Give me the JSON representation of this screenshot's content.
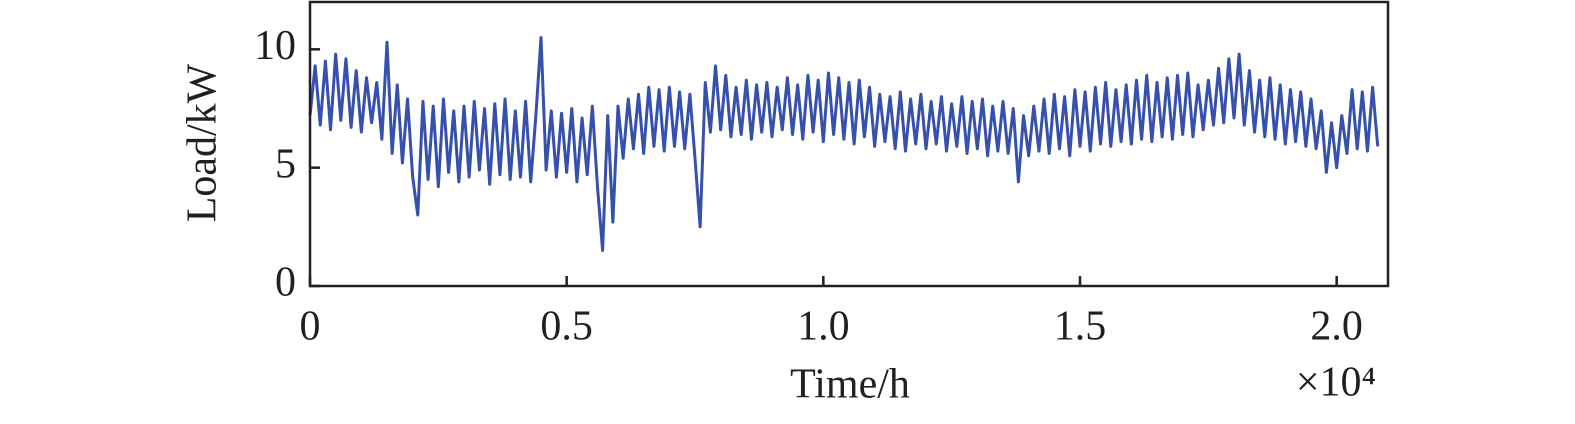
{
  "chart_data": {
    "type": "line",
    "xlabel": "Time/h",
    "ylabel": "Load/kW",
    "x_multiplier": "×10⁴",
    "color": "#3650ad",
    "xlim": [
      0,
      2.1
    ],
    "ylim": [
      0,
      12
    ],
    "xticks": [
      0,
      0.5,
      {
        "value": 1,
        "label": "1.0"
      },
      1.5,
      {
        "value": 2,
        "label": "2.0"
      }
    ],
    "yticks": [
      0,
      5,
      10
    ],
    "x": [
      0,
      0.01,
      0.02,
      0.03,
      0.04,
      0.05,
      0.06,
      0.07,
      0.08,
      0.09,
      0.1,
      0.11,
      0.12,
      0.13,
      0.14,
      0.15,
      0.16,
      0.17,
      0.18,
      0.19,
      0.2,
      0.21,
      0.22,
      0.23,
      0.24,
      0.25,
      0.26,
      0.27,
      0.28,
      0.29,
      0.3,
      0.31,
      0.32,
      0.33,
      0.34,
      0.35,
      0.36,
      0.37,
      0.38,
      0.39,
      0.4,
      0.41,
      0.42,
      0.43,
      0.44,
      0.45,
      0.46,
      0.47,
      0.48,
      0.49,
      0.5,
      0.51,
      0.52,
      0.53,
      0.54,
      0.55,
      0.56,
      0.57,
      0.58,
      0.59,
      0.6,
      0.61,
      0.62,
      0.63,
      0.64,
      0.65,
      0.66,
      0.67,
      0.68,
      0.69,
      0.7,
      0.71,
      0.72,
      0.73,
      0.74,
      0.75,
      0.76,
      0.77,
      0.78,
      0.79,
      0.8,
      0.81,
      0.82,
      0.83,
      0.84,
      0.85,
      0.86,
      0.87,
      0.88,
      0.89,
      0.9,
      0.91,
      0.92,
      0.93,
      0.94,
      0.95,
      0.96,
      0.97,
      0.98,
      0.99,
      1,
      1.01,
      1.02,
      1.03,
      1.04,
      1.05,
      1.06,
      1.07,
      1.08,
      1.09,
      1.1,
      1.11,
      1.12,
      1.13,
      1.14,
      1.15,
      1.16,
      1.17,
      1.18,
      1.19,
      1.2,
      1.21,
      1.22,
      1.23,
      1.24,
      1.25,
      1.26,
      1.27,
      1.28,
      1.29,
      1.3,
      1.31,
      1.32,
      1.33,
      1.34,
      1.35,
      1.36,
      1.37,
      1.38,
      1.39,
      1.4,
      1.41,
      1.42,
      1.43,
      1.44,
      1.45,
      1.46,
      1.47,
      1.48,
      1.49,
      1.5,
      1.51,
      1.52,
      1.53,
      1.54,
      1.55,
      1.56,
      1.57,
      1.58,
      1.59,
      1.6,
      1.61,
      1.62,
      1.63,
      1.64,
      1.65,
      1.66,
      1.67,
      1.68,
      1.69,
      1.7,
      1.71,
      1.72,
      1.73,
      1.74,
      1.75,
      1.76,
      1.77,
      1.78,
      1.79,
      1.8,
      1.81,
      1.82,
      1.83,
      1.84,
      1.85,
      1.86,
      1.87,
      1.88,
      1.89,
      1.9,
      1.91,
      1.92,
      1.93,
      1.94,
      1.95,
      1.96,
      1.97,
      1.98,
      1.99,
      2,
      2.01,
      2.02,
      2.03,
      2.04,
      2.05,
      2.06,
      2.07,
      2.08
    ],
    "values": [
      7.2,
      9.3,
      6.8,
      9.5,
      6.6,
      9.8,
      7.0,
      9.6,
      6.7,
      9.1,
      6.5,
      8.8,
      6.9,
      8.6,
      6.2,
      10.3,
      5.6,
      8.5,
      5.2,
      7.9,
      4.6,
      3.0,
      7.8,
      4.5,
      7.6,
      4.2,
      7.9,
      4.8,
      7.4,
      4.4,
      7.6,
      4.6,
      7.8,
      4.9,
      7.5,
      4.3,
      7.7,
      4.7,
      7.9,
      4.5,
      7.4,
      4.6,
      7.8,
      4.4,
      7.2,
      10.5,
      4.9,
      7.4,
      4.6,
      7.3,
      4.8,
      7.5,
      4.4,
      7.1,
      4.7,
      7.6,
      4.2,
      1.5,
      7.2,
      2.7,
      7.6,
      5.4,
      7.9,
      5.8,
      8.1,
      5.6,
      8.4,
      5.9,
      8.3,
      5.7,
      8.4,
      5.9,
      8.2,
      5.8,
      8.1,
      5.4,
      2.5,
      8.6,
      6.5,
      9.3,
      6.6,
      8.9,
      6.3,
      8.4,
      6.4,
      8.7,
      6.2,
      8.5,
      6.5,
      8.6,
      6.3,
      8.4,
      6.6,
      8.8,
      6.4,
      8.5,
      6.2,
      8.9,
      6.5,
      8.7,
      6.1,
      9.0,
      6.4,
      8.8,
      6.2,
      8.6,
      6.0,
      8.7,
      6.3,
      8.4,
      5.9,
      8.1,
      6.1,
      8.0,
      5.8,
      8.2,
      5.7,
      7.9,
      6.0,
      8.1,
      5.8,
      7.8,
      6.0,
      8.0,
      5.7,
      7.7,
      5.9,
      8.0,
      5.6,
      7.8,
      5.8,
      7.9,
      5.5,
      7.6,
      5.7,
      7.8,
      5.6,
      7.5,
      4.4,
      7.2,
      5.5,
      7.6,
      5.7,
      7.9,
      5.6,
      8.1,
      5.8,
      8.0,
      5.5,
      8.3,
      5.9,
      8.2,
      5.7,
      8.4,
      6.0,
      8.6,
      5.9,
      8.3,
      6.1,
      8.5,
      6.0,
      8.7,
      6.2,
      8.9,
      6.1,
      8.6,
      6.3,
      8.8,
      6.2,
      8.9,
      6.4,
      9.0,
      6.3,
      8.5,
      6.6,
      8.7,
      6.8,
      9.2,
      6.9,
      9.6,
      7.1,
      9.8,
      6.8,
      9.1,
      6.5,
      8.7,
      6.3,
      8.8,
      6.2,
      8.5,
      6.0,
      8.3,
      6.1,
      8.2,
      5.9,
      7.9,
      5.8,
      7.4,
      4.8,
      6.9,
      5.0,
      7.2,
      5.6,
      8.3,
      5.8,
      8.2,
      5.7,
      8.4,
      5.9
    ]
  }
}
